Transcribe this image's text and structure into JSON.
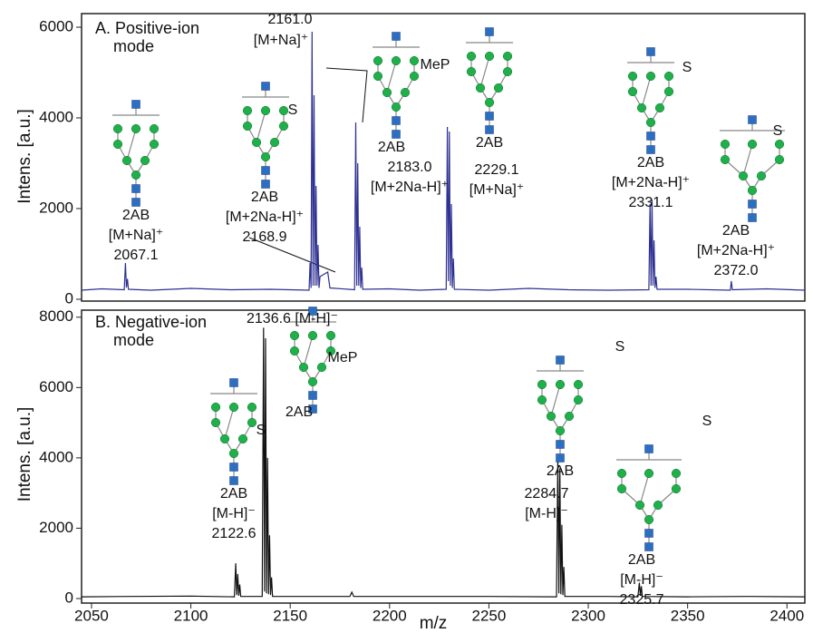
{
  "chart_data": [
    {
      "type": "line",
      "panel_label": [
        "A. Positive-ion",
        "mode"
      ],
      "y_label": "Intens. [a.u.]",
      "color": "#2e3192",
      "xlim": [
        2045,
        2409
      ],
      "ylim": [
        0,
        6300
      ],
      "yticks": [
        0,
        2000,
        4000,
        6000
      ],
      "x": [
        2045,
        2055,
        2066.5,
        2067.1,
        2067.6,
        2068.1,
        2068.6,
        2080,
        2100,
        2120,
        2140,
        2159.5,
        2160,
        2160.5,
        2161.0,
        2161.5,
        2162,
        2162.5,
        2163,
        2163.5,
        2164,
        2164.5,
        2165,
        2168.9,
        2170,
        2182.4,
        2183.0,
        2183.5,
        2184,
        2184.5,
        2185,
        2185.5,
        2186,
        2186.5,
        2200,
        2215,
        2228.5,
        2229.1,
        2229.6,
        2230.1,
        2230.6,
        2231.1,
        2231.6,
        2232.1,
        2232.6,
        2250,
        2270,
        2290,
        2310,
        2330.5,
        2331.1,
        2331.6,
        2332.1,
        2332.6,
        2333.1,
        2333.6,
        2334.1,
        2334.6,
        2350,
        2371.5,
        2372.0,
        2372.5,
        2390,
        2409
      ],
      "values": [
        200,
        230,
        210,
        800,
        260,
        450,
        220,
        200,
        240,
        210,
        220,
        200,
        800,
        250,
        5900,
        300,
        4500,
        300,
        2500,
        300,
        1200,
        250,
        500,
        600,
        250,
        210,
        3900,
        300,
        3000,
        300,
        1600,
        250,
        700,
        220,
        230,
        200,
        220,
        3800,
        400,
        3700,
        300,
        2100,
        250,
        900,
        220,
        200,
        240,
        210,
        200,
        210,
        2100,
        300,
        2200,
        300,
        1300,
        250,
        500,
        220,
        220,
        200,
        400,
        210,
        230,
        200
      ],
      "annotations": [
        {
          "lines": [
            "2AB",
            "[M+Na]⁺",
            "2067.1"
          ]
        },
        {
          "lines": [
            "2161.0"
          ]
        },
        {
          "lines": [
            "[M+Na]⁺"
          ]
        },
        {
          "lines": [
            "S"
          ]
        },
        {
          "lines": [
            "2AB",
            "[M+2Na-H]⁺",
            "2168.9"
          ]
        },
        {
          "lines": [
            "MeP"
          ]
        },
        {
          "lines": [
            "2AB"
          ]
        },
        {
          "lines": [
            "2183.0",
            "[M+2Na-H]⁺"
          ]
        },
        {
          "lines": [
            "2AB"
          ]
        },
        {
          "lines": [
            "2229.1",
            "[M+Na]⁺"
          ]
        },
        {
          "lines": [
            "S"
          ]
        },
        {
          "lines": [
            "2AB",
            "[M+2Na-H]⁺",
            "2331.1"
          ]
        },
        {
          "lines": [
            "S"
          ]
        },
        {
          "lines": [
            "2AB",
            "[M+2Na-H]⁺",
            "2372.0"
          ]
        }
      ]
    },
    {
      "type": "line",
      "panel_label": [
        "B. Negative-ion",
        "mode"
      ],
      "y_label": "Intens. [a.u.]",
      "x_label": "m/z",
      "color": "#111111",
      "xlim": [
        2045,
        2409
      ],
      "ylim": [
        0,
        8200
      ],
      "yticks": [
        0,
        2000,
        4000,
        6000,
        8000
      ],
      "xticks": [
        2050,
        2100,
        2150,
        2200,
        2250,
        2300,
        2350,
        2400
      ],
      "x": [
        2045,
        2070,
        2100,
        2121.9,
        2122.6,
        2123.1,
        2123.6,
        2124.1,
        2124.6,
        2125.1,
        2135.9,
        2136.6,
        2137.1,
        2137.6,
        2138.1,
        2138.6,
        2139.1,
        2139.6,
        2140.1,
        2140.6,
        2141.1,
        2160,
        2180,
        2181,
        2182,
        2200,
        2250,
        2284.0,
        2284.7,
        2285.2,
        2285.7,
        2286.2,
        2286.7,
        2287.2,
        2287.7,
        2288.2,
        2310,
        2325.0,
        2325.7,
        2326.2,
        2326.7,
        2327.2,
        2350,
        2380,
        2409
      ],
      "values": [
        50,
        60,
        70,
        50,
        1000,
        100,
        700,
        80,
        400,
        60,
        60,
        7700,
        200,
        7400,
        150,
        4000,
        120,
        1800,
        100,
        600,
        60,
        60,
        60,
        180,
        60,
        60,
        60,
        50,
        4100,
        150,
        3700,
        120,
        2100,
        100,
        900,
        60,
        60,
        50,
        450,
        80,
        350,
        60,
        50,
        60,
        50
      ],
      "annotations": [
        {
          "lines": [
            "2136.6 [M-H]⁻"
          ]
        },
        {
          "lines": [
            "MeP"
          ]
        },
        {
          "lines": [
            "2AB"
          ]
        },
        {
          "lines": [
            "S"
          ]
        },
        {
          "lines": [
            "2AB",
            "[M-H]⁻",
            "2122.6"
          ]
        },
        {
          "lines": [
            "S"
          ]
        },
        {
          "lines": [
            "2AB"
          ]
        },
        {
          "lines": [
            "2284.7",
            "[M-H]⁻"
          ]
        },
        {
          "lines": [
            "S"
          ]
        },
        {
          "lines": [
            "2AB",
            "[M-H]⁻",
            "2325.7"
          ]
        }
      ]
    }
  ]
}
